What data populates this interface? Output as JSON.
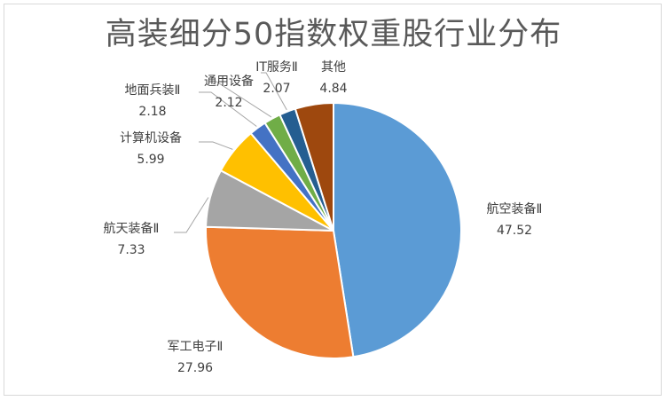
{
  "chart_data": {
    "type": "pie",
    "title": "高装细分50指数权重股行业分布",
    "start_angle_deg": 0,
    "direction": "clockwise",
    "legend": "none",
    "slices": [
      {
        "label": "航空装备Ⅱ",
        "value": 47.52,
        "value_label": "47.52",
        "color": "#5b9bd5"
      },
      {
        "label": "军工电子Ⅱ",
        "value": 27.96,
        "value_label": "27.96",
        "color": "#ed7d31"
      },
      {
        "label": "航天装备Ⅱ",
        "value": 7.33,
        "value_label": "7.33",
        "color": "#a5a5a5"
      },
      {
        "label": "计算机设备",
        "value": 5.99,
        "value_label": "5.99",
        "color": "#ffc000"
      },
      {
        "label": "地面兵装Ⅱ",
        "value": 2.18,
        "value_label": "2.18",
        "color": "#4472c4"
      },
      {
        "label": "通用设备",
        "value": 2.12,
        "value_label": "2.12",
        "color": "#70ad47"
      },
      {
        "label": "IT服务Ⅱ",
        "value": 2.07,
        "value_label": "2.07",
        "color": "#255e91"
      },
      {
        "label": "其他",
        "value": 4.84,
        "value_label": "4.84",
        "color": "#9e480e"
      }
    ]
  }
}
